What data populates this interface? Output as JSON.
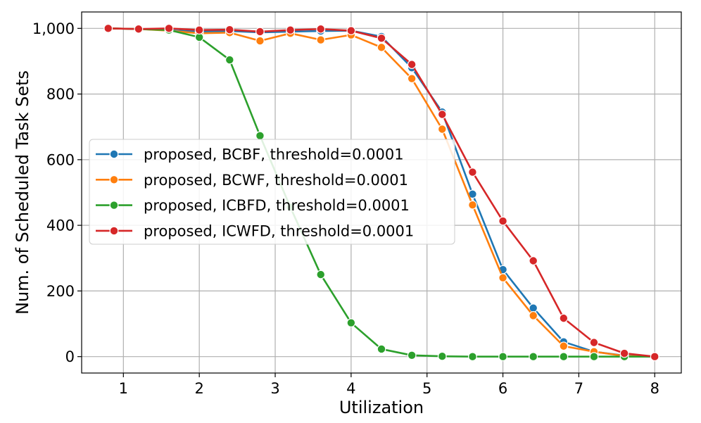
{
  "chart_data": {
    "type": "line",
    "xlabel": "Utilization",
    "ylabel": "Num. of Scheduled Task Sets",
    "xlim": [
      0.45,
      8.35
    ],
    "ylim": [
      -50,
      1050
    ],
    "xticks": [
      1,
      2,
      3,
      4,
      5,
      6,
      7,
      8
    ],
    "yticks": [
      0,
      200,
      400,
      600,
      800,
      1000
    ],
    "ytick_labels": [
      "0",
      "200",
      "400",
      "600",
      "800",
      "1,000"
    ],
    "grid": true,
    "legend_position": "center-left",
    "x": [
      0.8,
      1.2,
      1.6,
      2.0,
      2.4,
      2.8,
      3.2,
      3.6,
      4.0,
      4.4,
      4.8,
      5.2,
      5.6,
      6.0,
      6.4,
      6.8,
      7.2,
      7.6,
      8.0
    ],
    "series": [
      {
        "name": "proposed, BCBF, threshold=0.0001",
        "color": "#1f77b4",
        "values": [
          1000,
          998,
          994,
          990,
          992,
          988,
          990,
          992,
          993,
          975,
          880,
          745,
          495,
          265,
          148,
          45,
          15,
          3,
          0
        ]
      },
      {
        "name": "proposed, BCWF, threshold=0.0001",
        "color": "#ff7f0e",
        "values": [
          1000,
          998,
          993,
          985,
          987,
          962,
          985,
          965,
          980,
          942,
          847,
          693,
          462,
          240,
          125,
          32,
          15,
          2,
          0
        ]
      },
      {
        "name": "proposed, ICBFD, threshold=0.0001",
        "color": "#2ca02c",
        "values": [
          1000,
          998,
          995,
          973,
          904,
          673,
          455,
          250,
          103,
          23,
          4,
          1,
          0,
          0,
          0,
          0,
          0,
          0,
          0
        ]
      },
      {
        "name": "proposed, ICWFD, threshold=0.0001",
        "color": "#d62728",
        "values": [
          1000,
          998,
          1000,
          995,
          996,
          990,
          995,
          998,
          993,
          970,
          890,
          738,
          562,
          413,
          292,
          117,
          43,
          10,
          0
        ]
      }
    ]
  }
}
